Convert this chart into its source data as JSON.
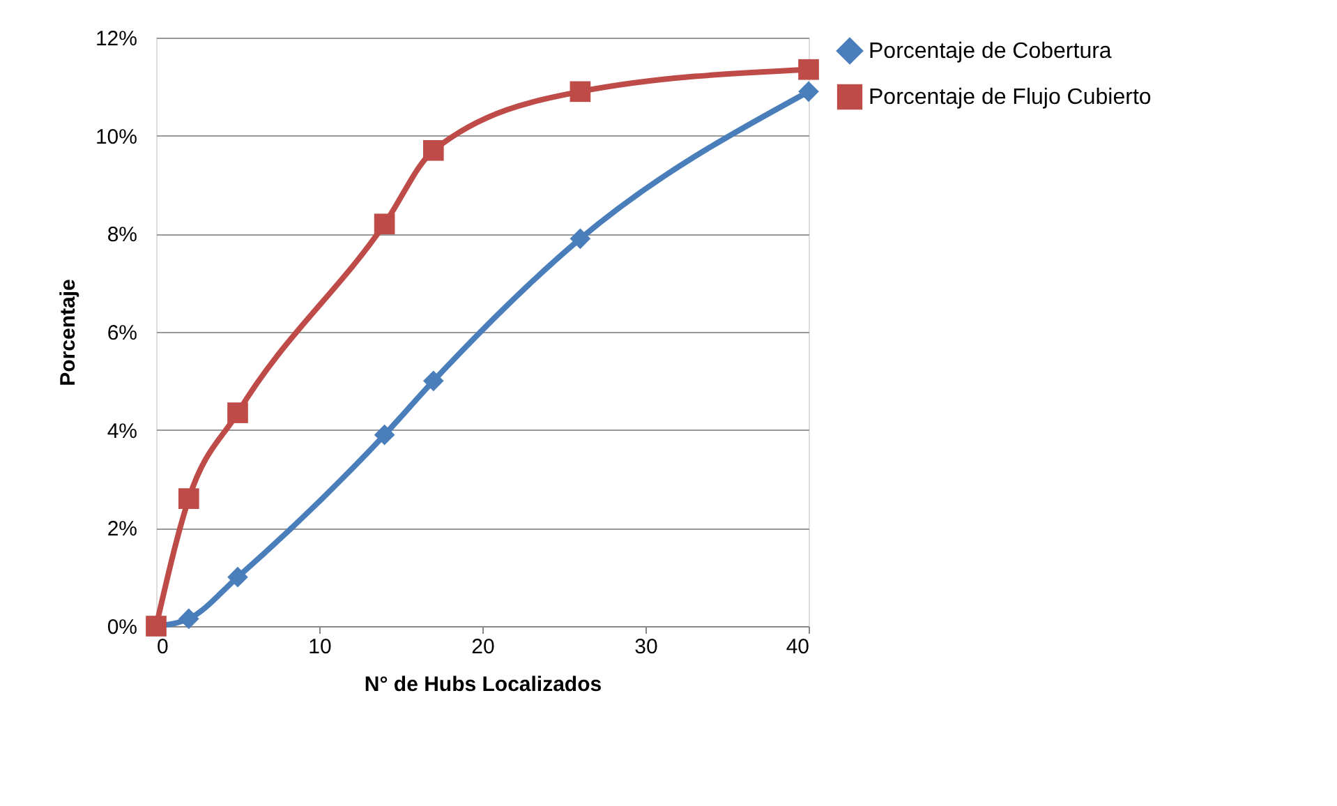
{
  "chart_data": {
    "type": "line",
    "xlabel": "N° de Hubs Localizados",
    "ylabel": "Porcentaje",
    "x": [
      0,
      2,
      5,
      14,
      17,
      26,
      40
    ],
    "series": [
      {
        "name": "Porcentaje de Cobertura",
        "color": "#4a7ebb",
        "marker": "diamond",
        "values": [
          0,
          0.15,
          1.0,
          3.9,
          5.0,
          7.9,
          10.9
        ]
      },
      {
        "name": "Porcentaje de Flujo Cubierto",
        "color": "#be4b48",
        "marker": "square",
        "values": [
          0,
          2.6,
          4.35,
          8.2,
          9.7,
          10.9,
          11.35
        ]
      }
    ],
    "xlim": [
      0,
      40
    ],
    "xticks": [
      0,
      10,
      20,
      30,
      40
    ],
    "ylim": [
      0,
      12
    ],
    "yticks": [
      {
        "value": 0,
        "label": "0%"
      },
      {
        "value": 2,
        "label": "2%"
      },
      {
        "value": 4,
        "label": "4%"
      },
      {
        "value": 6,
        "label": "6%"
      },
      {
        "value": 8,
        "label": "8%"
      },
      {
        "value": 10,
        "label": "10%"
      },
      {
        "value": 12,
        "label": "12%"
      }
    ],
    "grid": "y",
    "legend": "right",
    "line_style": "solid"
  }
}
